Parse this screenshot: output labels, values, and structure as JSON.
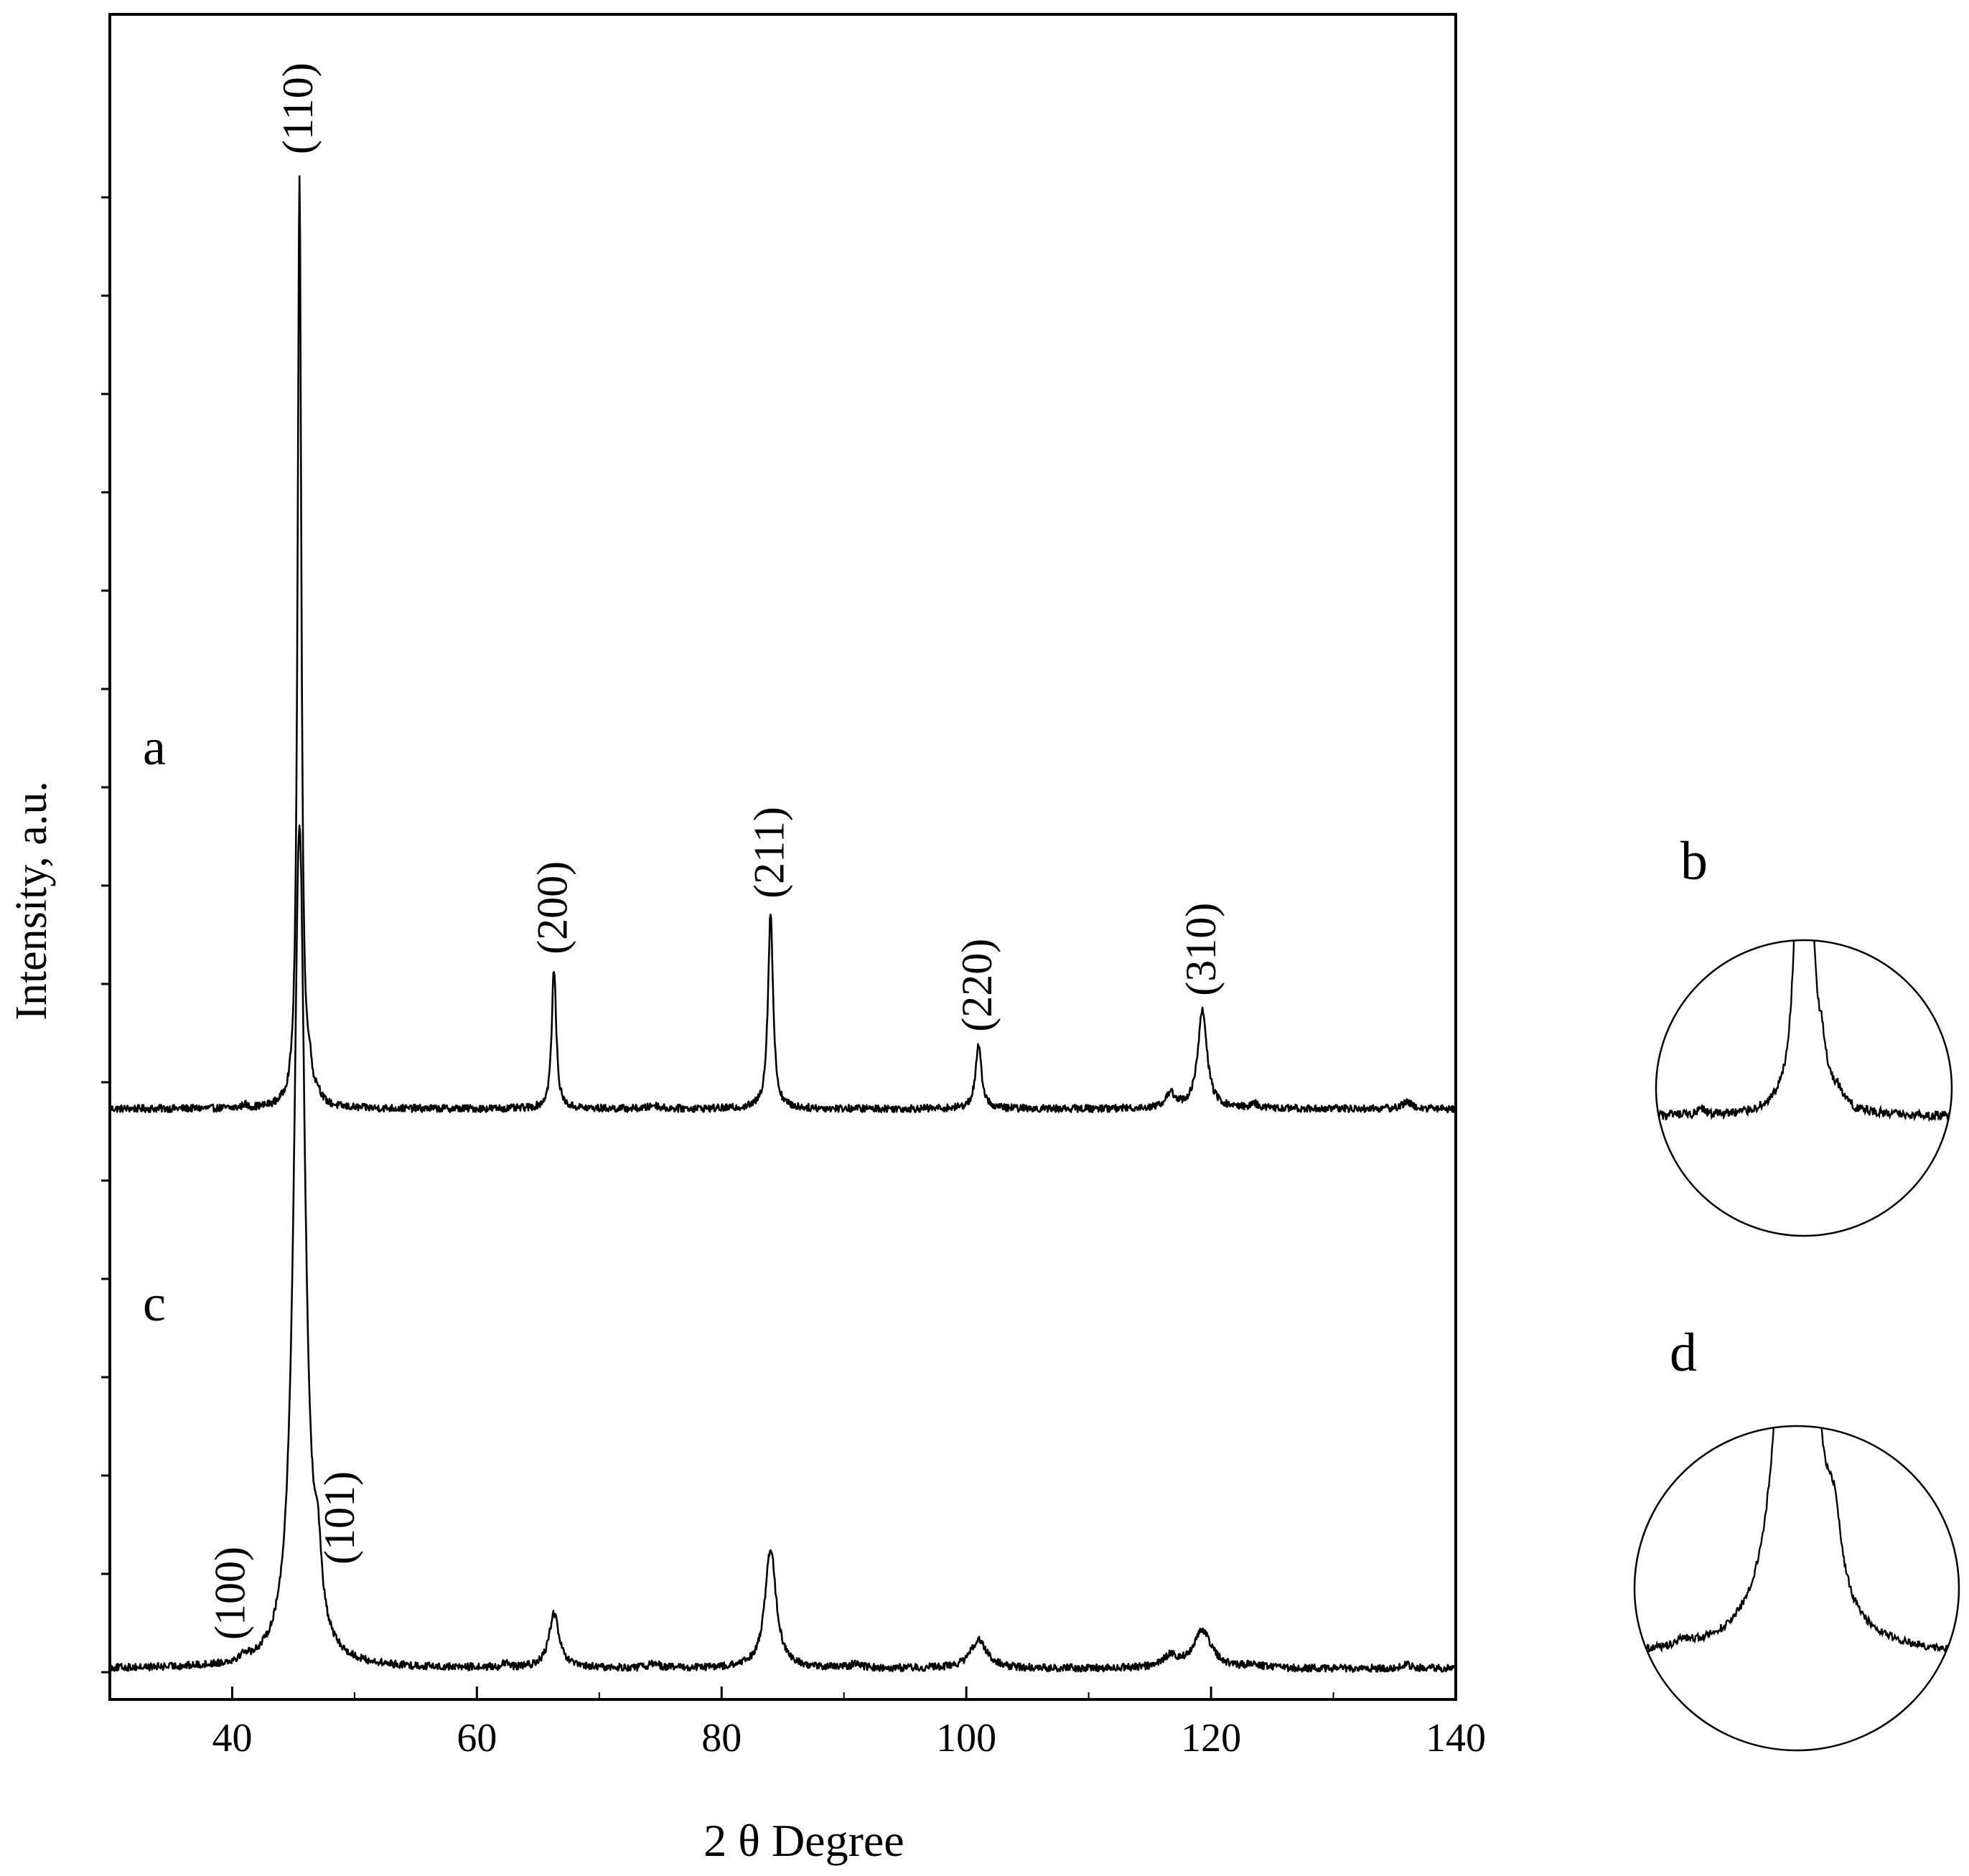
{
  "chart_data": {
    "type": "line",
    "xlabel": "2 θ Degree",
    "ylabel": "Intensity, a.u.",
    "xlim": [
      30,
      140
    ],
    "xticks": [
      40,
      60,
      80,
      100,
      120,
      140
    ],
    "xtick_labels": [
      "40",
      "60",
      "80",
      "100",
      "120",
      "140"
    ],
    "minor_xticks": [
      50,
      70,
      90,
      110,
      130
    ],
    "yaxis_tick_count": 16,
    "grid": false,
    "series": [
      {
        "name": "a",
        "baseline": 0,
        "noise": 0.004,
        "peaks": [
          {
            "x": 41.0,
            "h": 0.004,
            "w": 0.2
          },
          {
            "x": 45.5,
            "h": 1.0,
            "w": 0.18
          },
          {
            "x": 46.3,
            "h": 0.03,
            "w": 0.25
          },
          {
            "x": 47.0,
            "h": 0.01,
            "w": 0.3
          },
          {
            "x": 66.3,
            "h": 0.15,
            "w": 0.22
          },
          {
            "x": 74.5,
            "h": 0.004,
            "w": 0.4
          },
          {
            "x": 84.0,
            "h": 0.21,
            "w": 0.25
          },
          {
            "x": 101.0,
            "h": 0.067,
            "w": 0.3
          },
          {
            "x": 116.7,
            "h": 0.015,
            "w": 0.5
          },
          {
            "x": 119.3,
            "h": 0.105,
            "w": 0.45
          },
          {
            "x": 123.5,
            "h": 0.005,
            "w": 0.4
          },
          {
            "x": 136.0,
            "h": 0.007,
            "w": 0.5
          }
        ]
      },
      {
        "name": "c",
        "baseline": -0.6,
        "noise": 0.004,
        "peaks": [
          {
            "x": 41.0,
            "h": 0.006,
            "w": 0.35
          },
          {
            "x": 45.5,
            "h": 0.9,
            "w": 0.55
          },
          {
            "x": 47.0,
            "h": 0.07,
            "w": 0.35
          },
          {
            "x": 62.3,
            "h": 0.004,
            "w": 0.3
          },
          {
            "x": 66.3,
            "h": 0.058,
            "w": 0.5
          },
          {
            "x": 74.5,
            "h": 0.005,
            "w": 0.5
          },
          {
            "x": 84.0,
            "h": 0.128,
            "w": 0.55
          },
          {
            "x": 91.0,
            "h": 0.005,
            "w": 0.5
          },
          {
            "x": 101.0,
            "h": 0.03,
            "w": 0.8
          },
          {
            "x": 116.7,
            "h": 0.012,
            "w": 0.7
          },
          {
            "x": 119.3,
            "h": 0.04,
            "w": 0.9
          },
          {
            "x": 123.5,
            "h": 0.005,
            "w": 0.5
          },
          {
            "x": 136.0,
            "h": 0.004,
            "w": 0.5
          }
        ]
      }
    ],
    "annotations": [
      {
        "text": "(110)",
        "x": 45.5,
        "series": "a"
      },
      {
        "text": "(200)",
        "x": 66.3,
        "series": "a"
      },
      {
        "text": "(211)",
        "x": 84.0,
        "series": "a"
      },
      {
        "text": "(220)",
        "x": 101.0,
        "series": "a"
      },
      {
        "text": "(310)",
        "x": 119.3,
        "series": "a"
      },
      {
        "text": "(100)",
        "x": 41.0,
        "series": "c"
      },
      {
        "text": "(101)",
        "x": 47.0,
        "series": "c"
      }
    ],
    "curve_labels": [
      {
        "text": "a",
        "series": "a"
      },
      {
        "text": "c",
        "series": "c"
      }
    ],
    "insets": [
      {
        "label": "b",
        "series": "a",
        "zoom_peak": 45.5
      },
      {
        "label": "d",
        "series": "c",
        "zoom_peak": 45.5
      }
    ]
  }
}
